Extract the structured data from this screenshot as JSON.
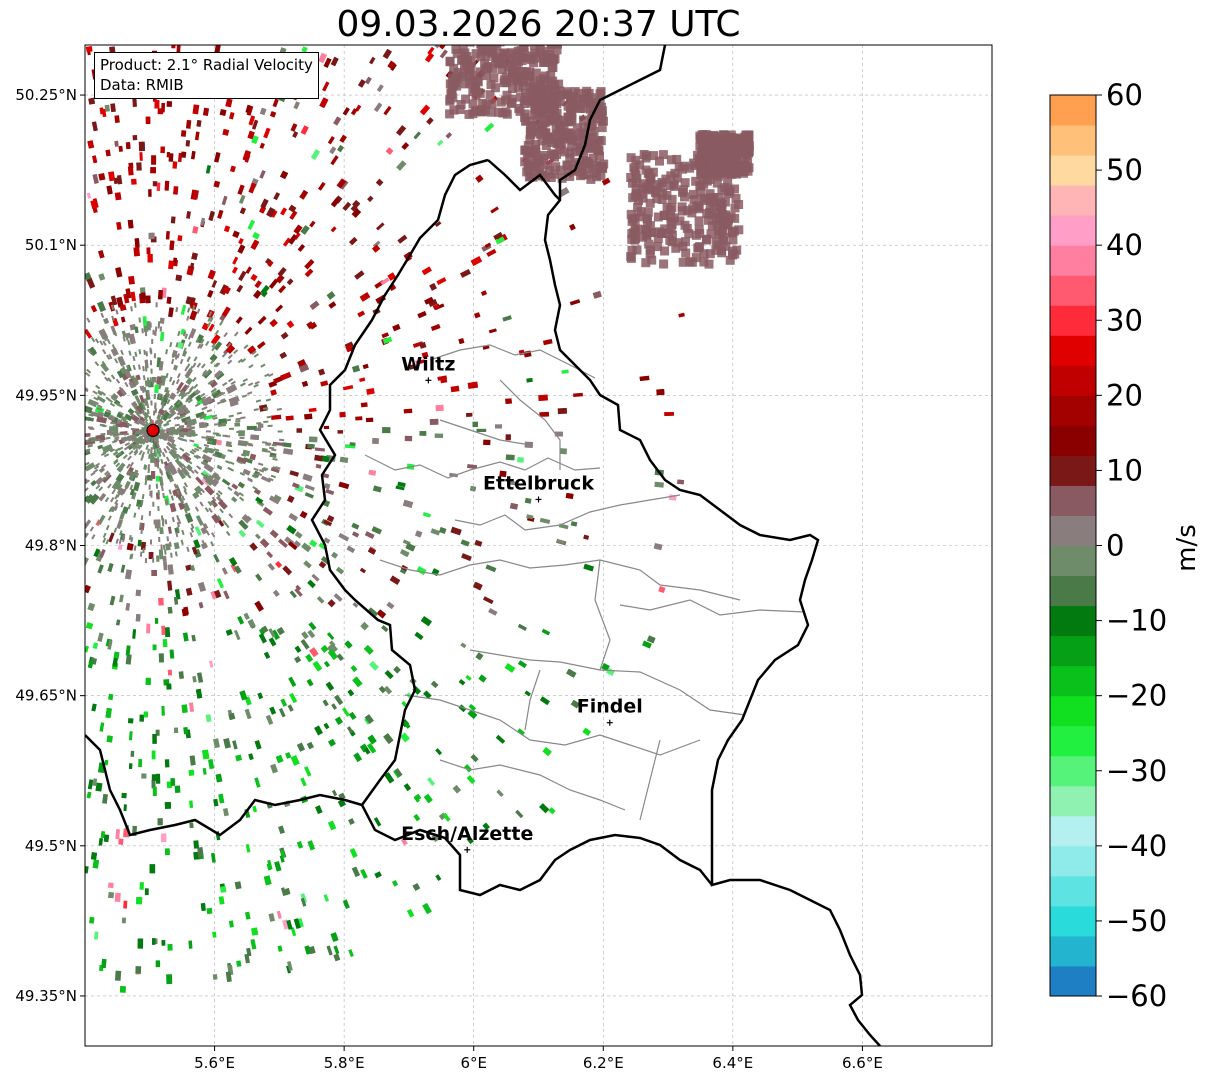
{
  "title": "09.03.2026 20:37 UTC",
  "info": {
    "product": "Product: 2.1° Radial Velocity",
    "data": "Data: RMIB"
  },
  "map": {
    "lon_range": [
      5.4,
      6.8
    ],
    "lat_range": [
      49.3,
      50.3
    ],
    "x_ticks": [
      {
        "lon": 5.6,
        "label": "5.6°E"
      },
      {
        "lon": 5.8,
        "label": "5.8°E"
      },
      {
        "lon": 6.0,
        "label": "6°E"
      },
      {
        "lon": 6.2,
        "label": "6.2°E"
      },
      {
        "lon": 6.4,
        "label": "6.4°E"
      },
      {
        "lon": 6.6,
        "label": "6.6°E"
      }
    ],
    "y_ticks": [
      {
        "lat": 50.25,
        "label": "50.25°N"
      },
      {
        "lat": 50.1,
        "label": "50.1°N"
      },
      {
        "lat": 49.95,
        "label": "49.95°N"
      },
      {
        "lat": 49.8,
        "label": "49.8°N"
      },
      {
        "lat": 49.65,
        "label": "49.65°N"
      },
      {
        "lat": 49.5,
        "label": "49.5°N"
      },
      {
        "lat": 49.35,
        "label": "49.35°N"
      }
    ],
    "radar_site": {
      "lon": 5.505,
      "lat": 49.915
    },
    "cities": [
      {
        "name": "Wiltz",
        "lon": 5.93,
        "lat": 49.965
      },
      {
        "name": "Ettelbruck",
        "lon": 6.1,
        "lat": 49.846
      },
      {
        "name": "Findel",
        "lon": 6.21,
        "lat": 49.623
      },
      {
        "name": "Esch/Alzette",
        "lon": 5.99,
        "lat": 49.496
      }
    ],
    "colors": {
      "border": "#000000",
      "cantons": "#888888",
      "grid": "#b0b0b0",
      "radar_site": "#e00000"
    }
  },
  "colorbar": {
    "label": "m/s",
    "min": -60,
    "max": 60,
    "ticks": [
      {
        "value": 60,
        "label": "60"
      },
      {
        "value": 50,
        "label": "50"
      },
      {
        "value": 40,
        "label": "40"
      },
      {
        "value": 30,
        "label": "30"
      },
      {
        "value": 20,
        "label": "20"
      },
      {
        "value": 10,
        "label": "10"
      },
      {
        "value": 0,
        "label": "0"
      },
      {
        "value": -10,
        "label": "−10"
      },
      {
        "value": -20,
        "label": "−20"
      },
      {
        "value": -30,
        "label": "−30"
      },
      {
        "value": -40,
        "label": "−40"
      },
      {
        "value": -50,
        "label": "−50"
      },
      {
        "value": -60,
        "label": "−60"
      }
    ],
    "stops": [
      {
        "from": -60,
        "to": -56,
        "color": "#1f7fc4"
      },
      {
        "from": -56,
        "to": -52,
        "color": "#23b4cf"
      },
      {
        "from": -52,
        "to": -48,
        "color": "#2adbdb"
      },
      {
        "from": -48,
        "to": -44,
        "color": "#5ee3e3"
      },
      {
        "from": -44,
        "to": -40,
        "color": "#8feaea"
      },
      {
        "from": -40,
        "to": -36,
        "color": "#b5f0f0"
      },
      {
        "from": -36,
        "to": -32,
        "color": "#8ff2b0"
      },
      {
        "from": -32,
        "to": -28,
        "color": "#55f37a"
      },
      {
        "from": -28,
        "to": -24,
        "color": "#22f040"
      },
      {
        "from": -24,
        "to": -20,
        "color": "#10e020"
      },
      {
        "from": -20,
        "to": -16,
        "color": "#0ac01a"
      },
      {
        "from": -16,
        "to": -12,
        "color": "#05a015"
      },
      {
        "from": -12,
        "to": -8,
        "color": "#037a10"
      },
      {
        "from": -8,
        "to": -4,
        "color": "#4a7a48"
      },
      {
        "from": -4,
        "to": 0,
        "color": "#6f8c6a"
      },
      {
        "from": 0,
        "to": 4,
        "color": "#8a7d7d"
      },
      {
        "from": 4,
        "to": 8,
        "color": "#8a5a62"
      },
      {
        "from": 8,
        "to": 12,
        "color": "#7a1818"
      },
      {
        "from": 12,
        "to": 16,
        "color": "#8a0000"
      },
      {
        "from": 16,
        "to": 20,
        "color": "#a30000"
      },
      {
        "from": 20,
        "to": 24,
        "color": "#c00000"
      },
      {
        "from": 24,
        "to": 28,
        "color": "#e00000"
      },
      {
        "from": 28,
        "to": 32,
        "color": "#ff2a3a"
      },
      {
        "from": 32,
        "to": 36,
        "color": "#ff5a70"
      },
      {
        "from": 36,
        "to": 40,
        "color": "#ff7fa0"
      },
      {
        "from": 40,
        "to": 44,
        "color": "#ff9fc8"
      },
      {
        "from": 44,
        "to": 48,
        "color": "#ffb5b5"
      },
      {
        "from": 48,
        "to": 52,
        "color": "#ffd9a0"
      },
      {
        "from": 52,
        "to": 56,
        "color": "#ffc07a"
      },
      {
        "from": 56,
        "to": 60,
        "color": "#ffa050"
      }
    ]
  }
}
